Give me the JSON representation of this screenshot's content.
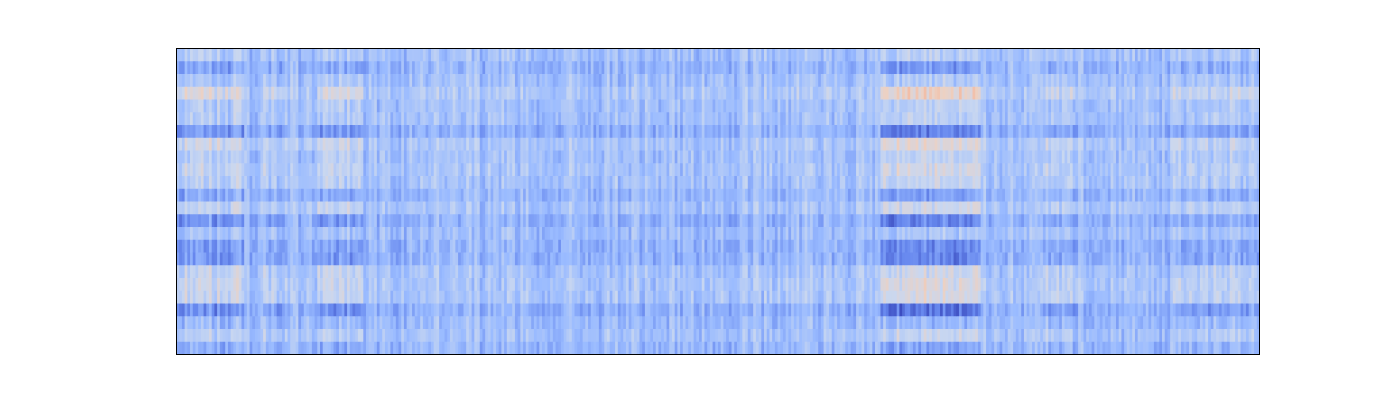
{
  "chart_data": {
    "type": "heatmap",
    "title": "",
    "xlabel": "",
    "ylabel": "",
    "axis_ticks": "none",
    "colormap": "coolwarm",
    "colormap_stops": [
      "#3b4cc0",
      "#6788ee",
      "#9abbff",
      "#c9d7f0",
      "#edd1c2",
      "#f7a889",
      "#e26952",
      "#b40426"
    ],
    "value_range": [
      0,
      1
    ],
    "n_rows": 24,
    "n_cols": 400,
    "typical_value": 0.3,
    "notes_visible_structure": [
      {
        "x_frac": [
          0.0,
          0.06
        ],
        "rows": "banded",
        "contrast": "high"
      },
      {
        "x_frac": [
          0.08,
          0.1
        ],
        "rows": "banded",
        "contrast": "medium"
      },
      {
        "x_frac": [
          0.13,
          0.17
        ],
        "rows": "banded",
        "contrast": "high"
      },
      {
        "x_frac": [
          0.65,
          0.74
        ],
        "rows": "banded",
        "contrast": "very high"
      },
      {
        "x_frac": [
          0.8,
          0.83
        ],
        "rows": "banded",
        "contrast": "medium"
      },
      {
        "x_frac": [
          0.92,
          1.0
        ],
        "rows": "banded",
        "contrast": "medium"
      }
    ],
    "frame_color": "#000000"
  }
}
